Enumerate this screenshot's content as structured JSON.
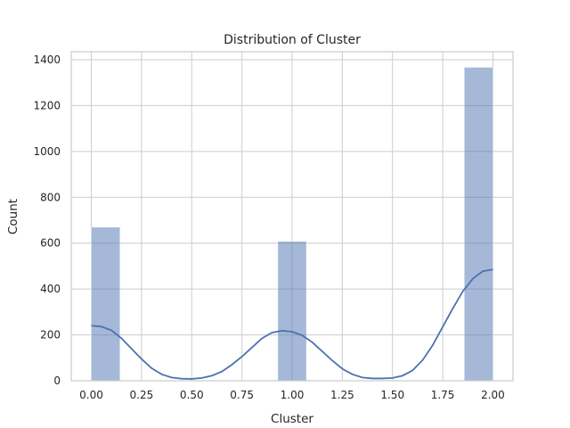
{
  "chart_data": {
    "type": "bar",
    "title": "Distribution of Cluster",
    "xlabel": "Cluster",
    "ylabel": "Count",
    "xlim": [
      -0.1,
      2.1
    ],
    "ylim": [
      0,
      1435
    ],
    "xticks": [
      "0.00",
      "0.25",
      "0.50",
      "0.75",
      "1.00",
      "1.25",
      "1.50",
      "1.75",
      "2.00"
    ],
    "yticks": [
      "0",
      "200",
      "400",
      "600",
      "800",
      "1000",
      "1200",
      "1400"
    ],
    "grid": true,
    "bins": [
      {
        "x0": 0.0,
        "x1": 0.1429,
        "count": 670
      },
      {
        "x0": 0.9286,
        "x1": 1.0714,
        "count": 608
      },
      {
        "x0": 1.8571,
        "x1": 2.0,
        "count": 1367
      }
    ],
    "kde": {
      "x": [
        0,
        0.05,
        0.1,
        0.15,
        0.2,
        0.25,
        0.3,
        0.35,
        0.4,
        0.45,
        0.5,
        0.55,
        0.6,
        0.65,
        0.7,
        0.75,
        0.8,
        0.85,
        0.9,
        0.95,
        1.0,
        1.05,
        1.1,
        1.15,
        1.2,
        1.25,
        1.3,
        1.35,
        1.4,
        1.45,
        1.5,
        1.55,
        1.6,
        1.65,
        1.7,
        1.75,
        1.8,
        1.85,
        1.9,
        1.95,
        2.0
      ],
      "y": [
        240,
        236,
        220,
        185,
        140,
        95,
        55,
        28,
        14,
        9,
        8,
        12,
        22,
        40,
        70,
        105,
        145,
        185,
        210,
        218,
        214,
        198,
        168,
        128,
        88,
        52,
        28,
        14,
        10,
        10,
        12,
        22,
        45,
        90,
        155,
        235,
        315,
        390,
        445,
        478,
        485
      ]
    },
    "colors": {
      "bar": "#4c72b0",
      "line": "#4c72b0",
      "grid": "#cccccc",
      "spine": "#cccccc"
    }
  }
}
